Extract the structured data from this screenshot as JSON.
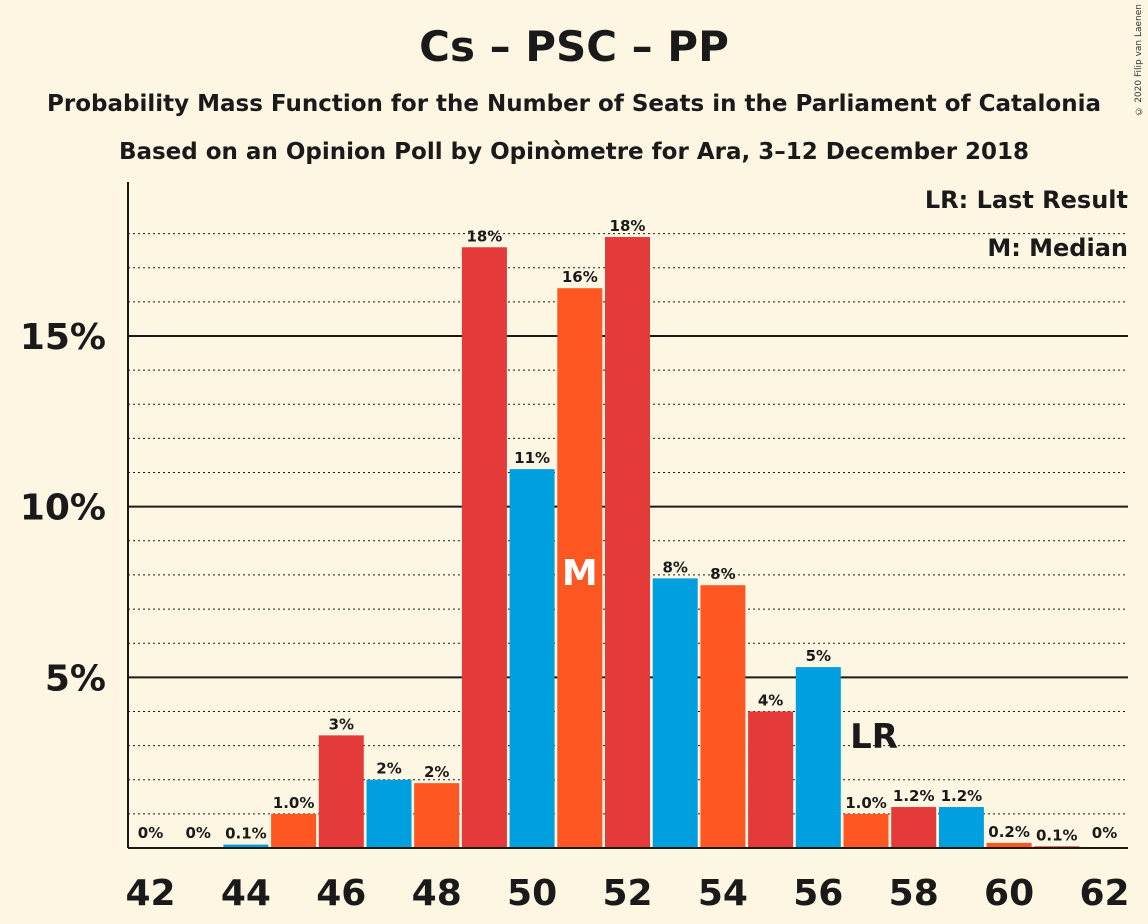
{
  "title": "Cs – PSC – PP",
  "subtitle1": "Probability Mass Function for the Number of Seats in the Parliament of Catalonia",
  "subtitle2": "Based on an Opinion Poll by Opinòmetre for Ara, 3–12 December 2018",
  "copyright": "© 2020 Filip van Laenen",
  "legend": {
    "last_result": "LR: Last Result",
    "median": "M: Median"
  },
  "colors": {
    "red": "#e53a3a",
    "blue": "#009fe0",
    "orange": "#ff5722",
    "background": "#fdf6e3"
  },
  "chart_data": {
    "type": "bar",
    "categories": [
      42,
      43,
      44,
      45,
      46,
      47,
      48,
      49,
      50,
      51,
      52,
      53,
      54,
      55,
      56,
      57,
      58,
      59,
      60,
      61,
      62
    ],
    "values": [
      0,
      0,
      0.1,
      1.0,
      3.3,
      2.0,
      1.9,
      17.6,
      11.1,
      16.4,
      17.9,
      7.9,
      7.7,
      4.0,
      5.3,
      1.0,
      1.2,
      1.2,
      0.15,
      0.05,
      0
    ],
    "labels": [
      "0%",
      "0%",
      "0.1%",
      "1.0%",
      "3%",
      "2%",
      "2%",
      "18%",
      "11%",
      "16%",
      "18%",
      "8%",
      "8%",
      "4%",
      "5%",
      "1.0%",
      "1.2%",
      "1.2%",
      "0.2%",
      "0.1%",
      "0%"
    ],
    "colors": [
      "red",
      "blue",
      "blue",
      "orange",
      "red",
      "blue",
      "orange",
      "red",
      "blue",
      "orange",
      "red",
      "blue",
      "orange",
      "red",
      "blue",
      "orange",
      "red",
      "blue",
      "orange",
      "red",
      "blue"
    ],
    "x_tick_labels": [
      "42",
      "44",
      "46",
      "48",
      "50",
      "52",
      "54",
      "56",
      "58",
      "60",
      "62"
    ],
    "y_ticks": [
      {
        "value": 5,
        "label": "5%"
      },
      {
        "value": 10,
        "label": "10%"
      },
      {
        "value": 15,
        "label": "15%"
      }
    ],
    "ylim": [
      0,
      19.5
    ],
    "median": {
      "seat": 51,
      "label": "M"
    },
    "last_result": {
      "seat": 57,
      "label": "LR"
    }
  }
}
